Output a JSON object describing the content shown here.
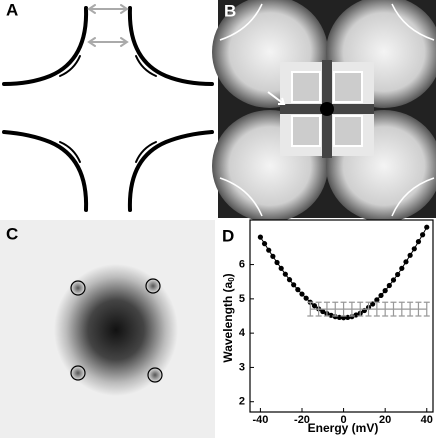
{
  "panel_labels": [
    "A",
    "B",
    "C",
    "D"
  ],
  "chart_data": {
    "type": "scatter",
    "x_label": "Energy (mV)",
    "y_label": {
      "text": "Wavelength (a",
      "sub": "0",
      "end": ")"
    },
    "xlim": [
      -45,
      43
    ],
    "ylim": [
      1.7,
      7.3
    ],
    "xticks": [
      -40,
      -20,
      0,
      20,
      40
    ],
    "yticks": [
      2,
      3,
      4,
      5,
      6
    ],
    "series": [
      {
        "color": "#000000",
        "x": [
          -40,
          -38,
          -36,
          -34,
          -32,
          -30,
          -28,
          -26,
          -24,
          -22,
          -20,
          -18,
          -16,
          -14,
          -12,
          -10,
          -8,
          -6,
          -4,
          -2,
          0,
          2,
          4,
          6,
          8,
          10,
          12,
          14,
          16,
          18,
          20,
          22,
          24,
          26,
          28,
          30,
          32,
          34,
          36,
          38,
          40
        ],
        "values": [
          6.8,
          6.61,
          6.42,
          6.24,
          6.06,
          5.89,
          5.72,
          5.56,
          5.41,
          5.27,
          5.14,
          5.02,
          4.9,
          4.8,
          4.71,
          4.63,
          4.57,
          4.52,
          4.48,
          4.46,
          4.45,
          4.46,
          4.48,
          4.53,
          4.58,
          4.66,
          4.75,
          4.85,
          4.97,
          5.1,
          5.24,
          5.39,
          5.55,
          5.71,
          5.89,
          6.08,
          6.27,
          6.46,
          6.67,
          6.87,
          7.09
        ]
      },
      {
        "color": "#999999",
        "errorbars": true,
        "x": [
          -16,
          -12,
          -8,
          -4,
          0,
          4,
          8,
          12,
          16,
          20,
          24,
          28,
          32,
          36,
          40
        ],
        "values": [
          4.7,
          4.7,
          4.7,
          4.7,
          4.7,
          4.7,
          4.7,
          4.7,
          4.7,
          4.7,
          4.7,
          4.7,
          4.7,
          4.7,
          4.7
        ],
        "errors": [
          0.2,
          0.2,
          0.2,
          0.2,
          0.2,
          0.2,
          0.2,
          0.2,
          0.2,
          0.2,
          0.2,
          0.2,
          0.2,
          0.2,
          0.2
        ]
      }
    ]
  }
}
